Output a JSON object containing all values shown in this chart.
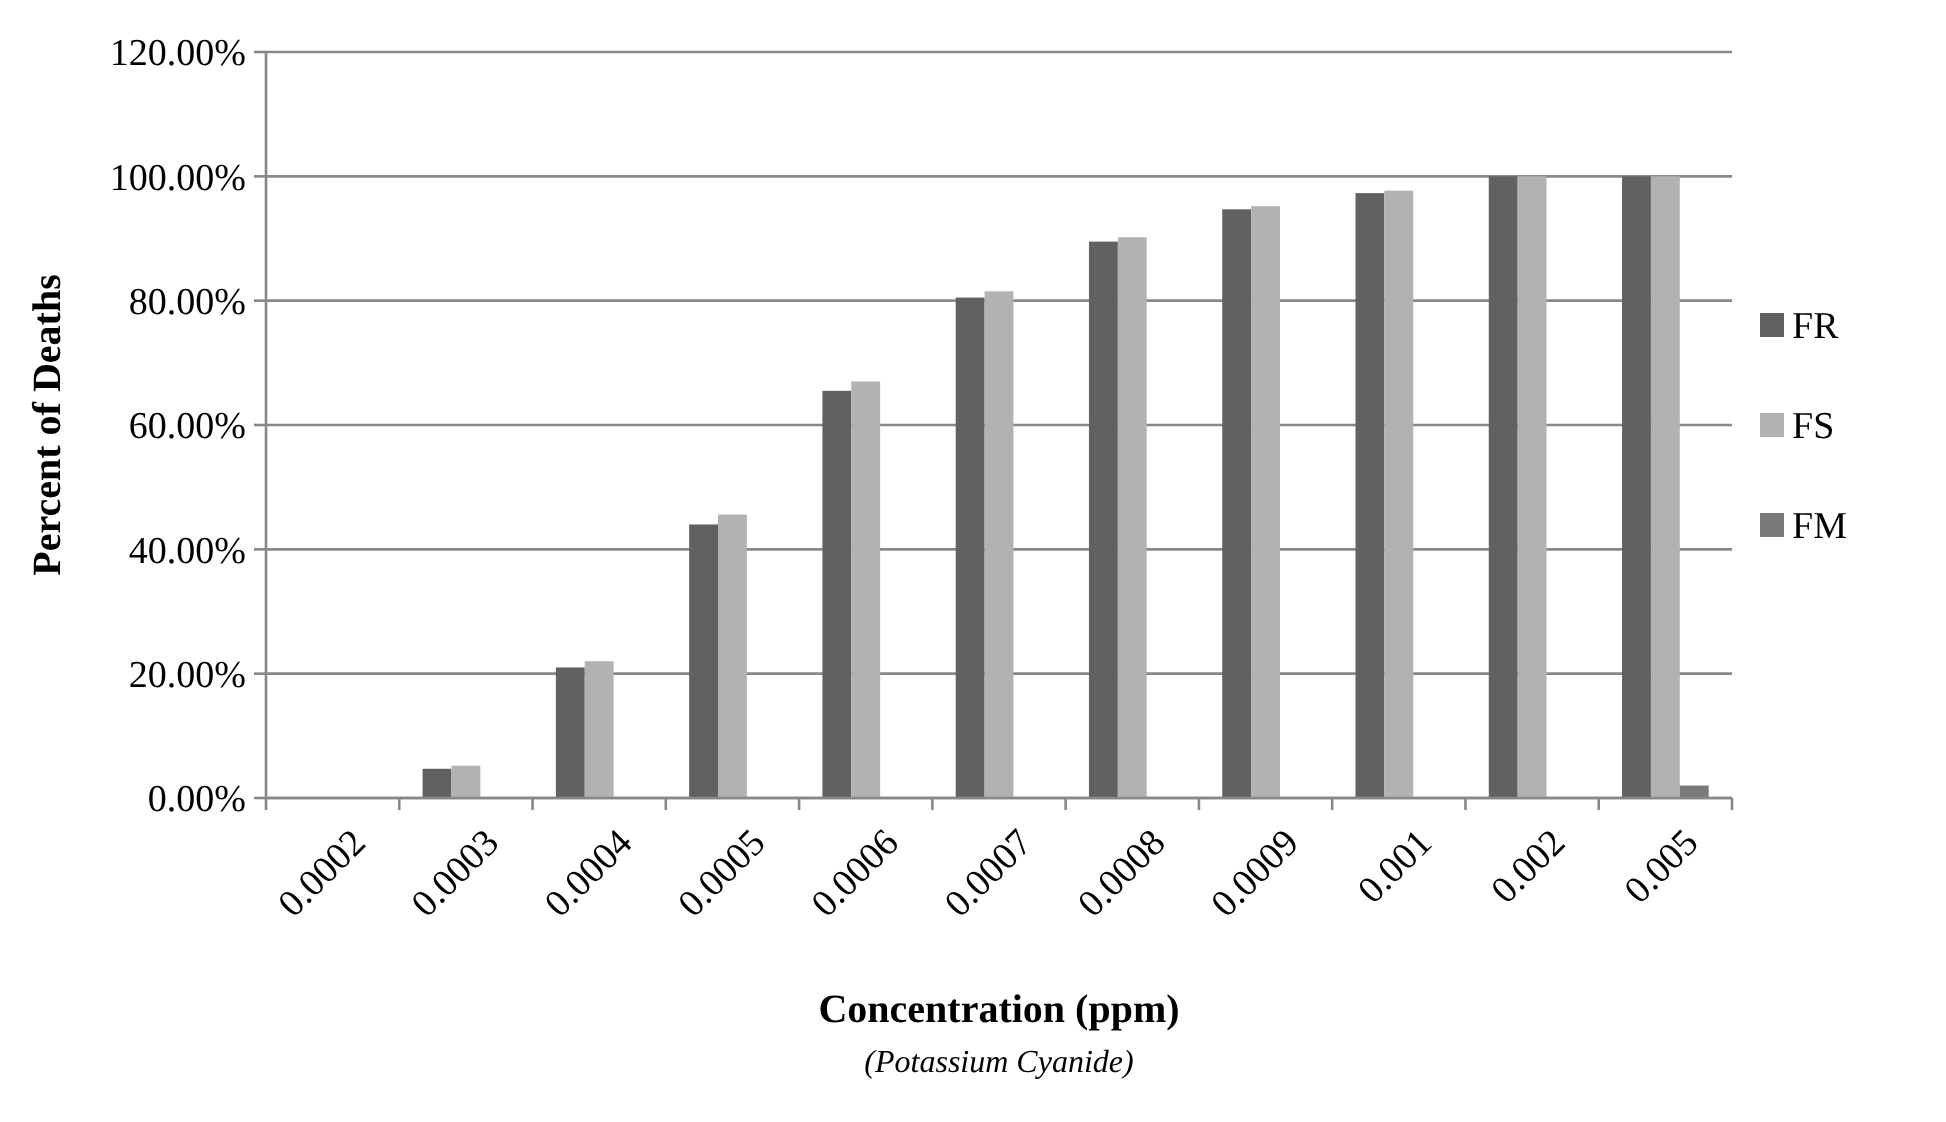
{
  "chart_data": {
    "type": "bar",
    "xlabel": "Concentration (ppm)",
    "ylabel": "Percent of Deaths",
    "annotations": [
      "(Potassium Cyanide)"
    ],
    "categories": [
      "0.0002",
      "0.0003",
      "0.0004",
      "0.0005",
      "0.0006",
      "0.0007",
      "0.0008",
      "0.0009",
      "0.001",
      "0.002",
      "0.005"
    ],
    "series": [
      {
        "name": "FR",
        "color": "#616161",
        "values": [
          0,
          4.7,
          21,
          44,
          65.5,
          80.5,
          89.5,
          94.7,
          97.3,
          100,
          100
        ]
      },
      {
        "name": "FS",
        "color": "#b2b2b2",
        "values": [
          0,
          5.2,
          22,
          45.6,
          67,
          81.5,
          90.2,
          95.2,
          97.7,
          100,
          100
        ]
      },
      {
        "name": "FM",
        "color": "#7a7a7a",
        "values": [
          0,
          0,
          0,
          0,
          0,
          0,
          0,
          0,
          0,
          0,
          2
        ]
      }
    ],
    "ylim": [
      0,
      120
    ],
    "yticks": [
      {
        "value": 0,
        "label": "0.00%"
      },
      {
        "value": 20,
        "label": "20.00%"
      },
      {
        "value": 40,
        "label": "40.00%"
      },
      {
        "value": 60,
        "label": "60.00%"
      },
      {
        "value": 80,
        "label": "80.00%"
      },
      {
        "value": 100,
        "label": "100.00%"
      },
      {
        "value": 120,
        "label": "120.00%"
      }
    ],
    "grid": "y",
    "legend": "right"
  }
}
